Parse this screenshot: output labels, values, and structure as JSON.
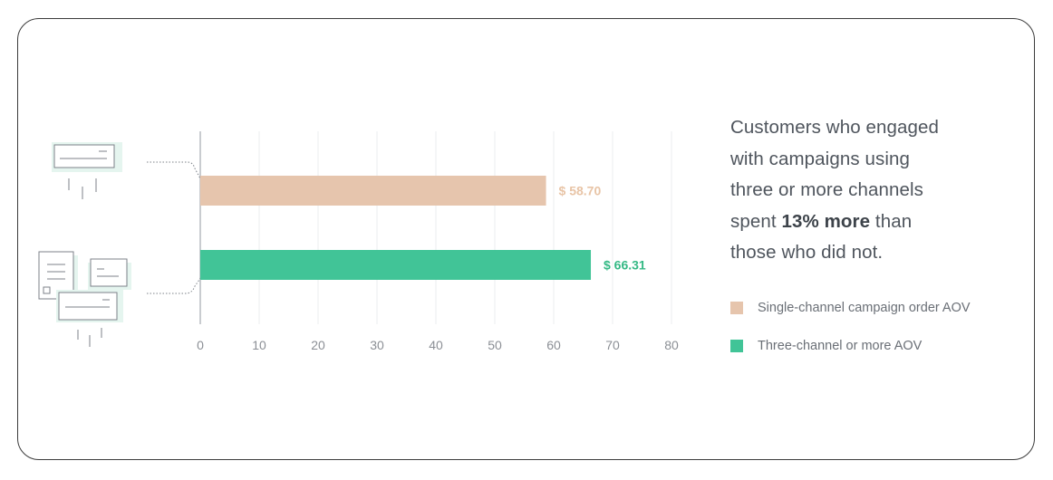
{
  "headline": {
    "line1": "Customers who engaged",
    "line2": "with campaigns using",
    "line3": "three or more channels",
    "line4_pre": "spent ",
    "line4_bold": "13% more",
    "line4_post": " than",
    "line5": "those who did not."
  },
  "colors": {
    "single": "#e6c5ad",
    "single_label": "#e8c4a6",
    "three": "#41c497",
    "three_label": "#35b985",
    "grid": "#ebedef",
    "axis": "#b7bbc0",
    "tick_label": "#8b8f95",
    "icon_stroke": "#7c8188",
    "icon_fill": "#e5f5ef"
  },
  "legend": [
    {
      "label": "Single-channel campaign order AOV",
      "color": "#e6c5ad"
    },
    {
      "label": "Three-channel or more AOV",
      "color": "#41c497"
    }
  ],
  "chart_data": {
    "type": "bar",
    "orientation": "horizontal",
    "categories": [
      "Single-channel campaign order AOV",
      "Three-channel or more AOV"
    ],
    "values": [
      58.7,
      66.31
    ],
    "value_labels": [
      "$ 58.70",
      "$ 66.31"
    ],
    "xlim": [
      0,
      80
    ],
    "xticks": [
      0,
      10,
      20,
      30,
      40,
      50,
      60,
      70,
      80
    ],
    "grid": true,
    "title": "",
    "xlabel": "",
    "ylabel": "",
    "legend_position": "right"
  }
}
